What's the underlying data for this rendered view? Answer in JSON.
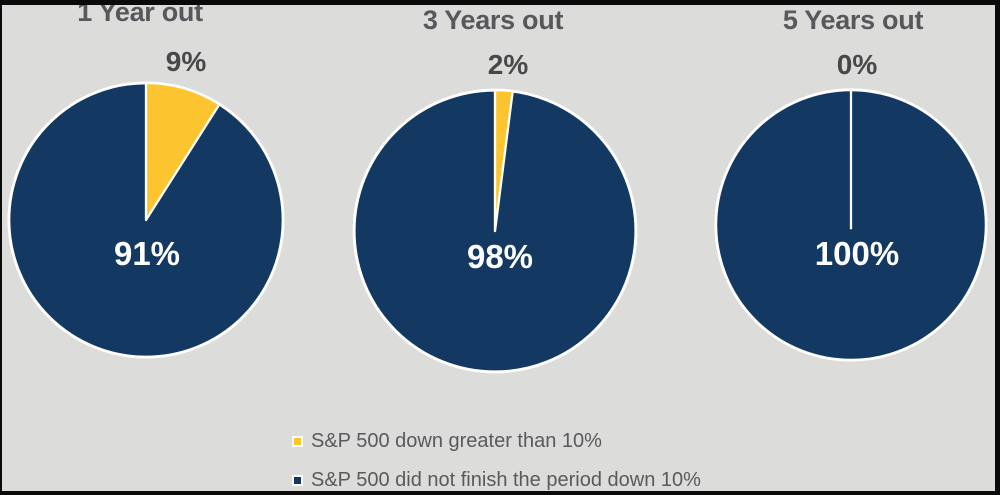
{
  "colors": {
    "down_slice": "#FCC52F",
    "up_slice": "#133862",
    "pie_border": "#FFFFFF",
    "background": "#DCDCDA",
    "frame": "#0A0A0A",
    "title_text": "#57585B",
    "outside_label_text": "#48484A",
    "inside_label_text": "#FFFFFF",
    "legend_text": "#595A5C"
  },
  "chart_data": [
    {
      "type": "pie",
      "title": "1 Year out",
      "categories": [
        "S&P 500 down greater than 10%",
        "S&P 500 did not finish the period down 10%"
      ],
      "values": [
        9,
        91
      ],
      "outside_label": "9%",
      "inside_label": "91%",
      "legend_position": "bottom"
    },
    {
      "type": "pie",
      "title": "3 Years out",
      "categories": [
        "S&P 500 down greater than 10%",
        "S&P 500 did not finish the period down 10%"
      ],
      "values": [
        2,
        98
      ],
      "outside_label": "2%",
      "inside_label": "98%",
      "legend_position": "bottom"
    },
    {
      "type": "pie",
      "title": "5 Years out",
      "categories": [
        "S&P 500 down greater than 10%",
        "S&P 500 did not finish the period down 10%"
      ],
      "values": [
        0,
        100
      ],
      "outside_label": "0%",
      "inside_label": "100%",
      "legend_position": "bottom"
    }
  ],
  "legend": {
    "items": [
      {
        "label": "S&P 500 down greater than 10%",
        "color": "#FCC52F"
      },
      {
        "label": "S&P 500 did not finish the period down 10%",
        "color": "#133862"
      }
    ]
  }
}
